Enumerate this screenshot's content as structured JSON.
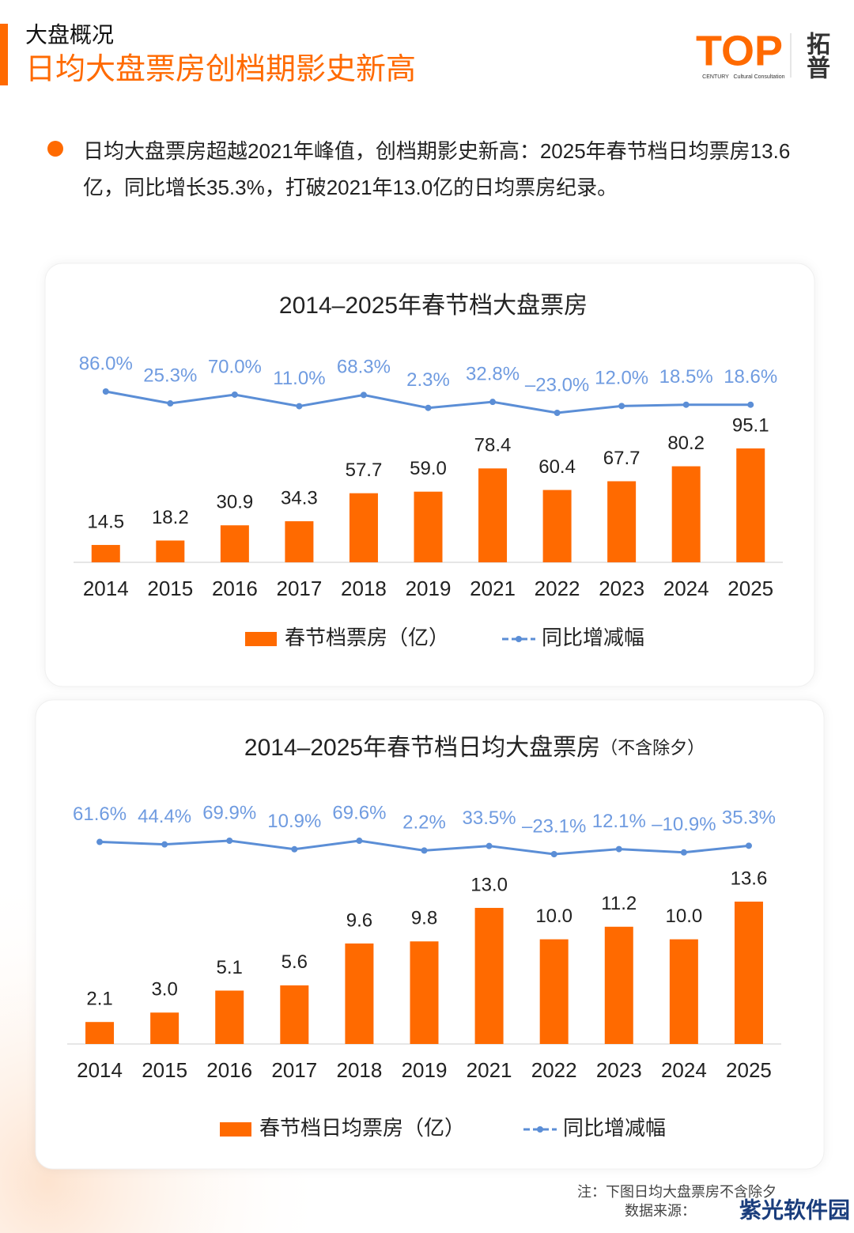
{
  "header": {
    "section": "大盘概况",
    "title": "日均大盘票房创档期影史新高",
    "logo": "TOP",
    "logo_left": "CENTURY",
    "logo_right": "Cultural Consultation",
    "logo_cn": "拓普"
  },
  "bullet": "日均大盘票房超越2021年峰值，创档期影史新高：2025年春节档日均票房13.6亿，同比增长35.3%，打破2021年13.0亿的日均票房纪录。",
  "chart_data": [
    {
      "type": "bar",
      "title": "2014–2025年春节档大盘票房",
      "categories": [
        "2014",
        "2015",
        "2016",
        "2017",
        "2018",
        "2019",
        "2021",
        "2022",
        "2023",
        "2024",
        "2025"
      ],
      "series": [
        {
          "name": "春节档票房（亿）",
          "color": "#ff6a00",
          "values": [
            14.5,
            18.2,
            30.9,
            34.3,
            57.7,
            59.0,
            78.4,
            60.4,
            67.7,
            80.2,
            95.1
          ],
          "value_labels": [
            "14.5",
            "18.2",
            "30.9",
            "34.3",
            "57.7",
            "59.0",
            "78.4",
            "60.4",
            "67.7",
            "80.2",
            "95.1"
          ]
        },
        {
          "name": "同比增减幅",
          "type": "line",
          "color": "#5b8ed6",
          "values": [
            86.0,
            25.3,
            70.0,
            11.0,
            68.3,
            2.3,
            32.8,
            -23.0,
            12.0,
            18.5,
            18.6
          ],
          "value_labels": [
            "86.0%",
            "25.3%",
            "70.0%",
            "11.0%",
            "68.3%",
            "2.3%",
            "32.8%",
            "–23.0%",
            "12.0%",
            "18.5%",
            "18.6%"
          ]
        }
      ]
    },
    {
      "type": "bar",
      "title": "2014–2025年春节档日均大盘票房",
      "title_note": "（不含除夕）",
      "categories": [
        "2014",
        "2015",
        "2016",
        "2017",
        "2018",
        "2019",
        "2021",
        "2022",
        "2023",
        "2024",
        "2025"
      ],
      "series": [
        {
          "name": "春节档日均票房（亿）",
          "color": "#ff6a00",
          "values": [
            2.1,
            3.0,
            5.1,
            5.6,
            9.6,
            9.8,
            13.0,
            10.0,
            11.2,
            10.0,
            13.6
          ],
          "value_labels": [
            "2.1",
            "3.0",
            "5.1",
            "5.6",
            "9.6",
            "9.8",
            "13.0",
            "10.0",
            "11.2",
            "10.0",
            "13.6"
          ]
        },
        {
          "name": "同比增减幅",
          "type": "line",
          "color": "#5b8ed6",
          "values": [
            61.6,
            44.4,
            69.9,
            10.9,
            69.6,
            2.2,
            33.5,
            -23.1,
            12.1,
            -10.9,
            35.3
          ],
          "value_labels": [
            "61.6%",
            "44.4%",
            "69.9%",
            "10.9%",
            "69.6%",
            "2.2%",
            "33.5%",
            "–23.1%",
            "12.1%",
            "–10.9%",
            "35.3%"
          ]
        }
      ]
    }
  ],
  "footer": {
    "note": "注：下图日均大盘票房不含除夕",
    "source": "数据来源：",
    "watermark": "紫光软件园"
  }
}
